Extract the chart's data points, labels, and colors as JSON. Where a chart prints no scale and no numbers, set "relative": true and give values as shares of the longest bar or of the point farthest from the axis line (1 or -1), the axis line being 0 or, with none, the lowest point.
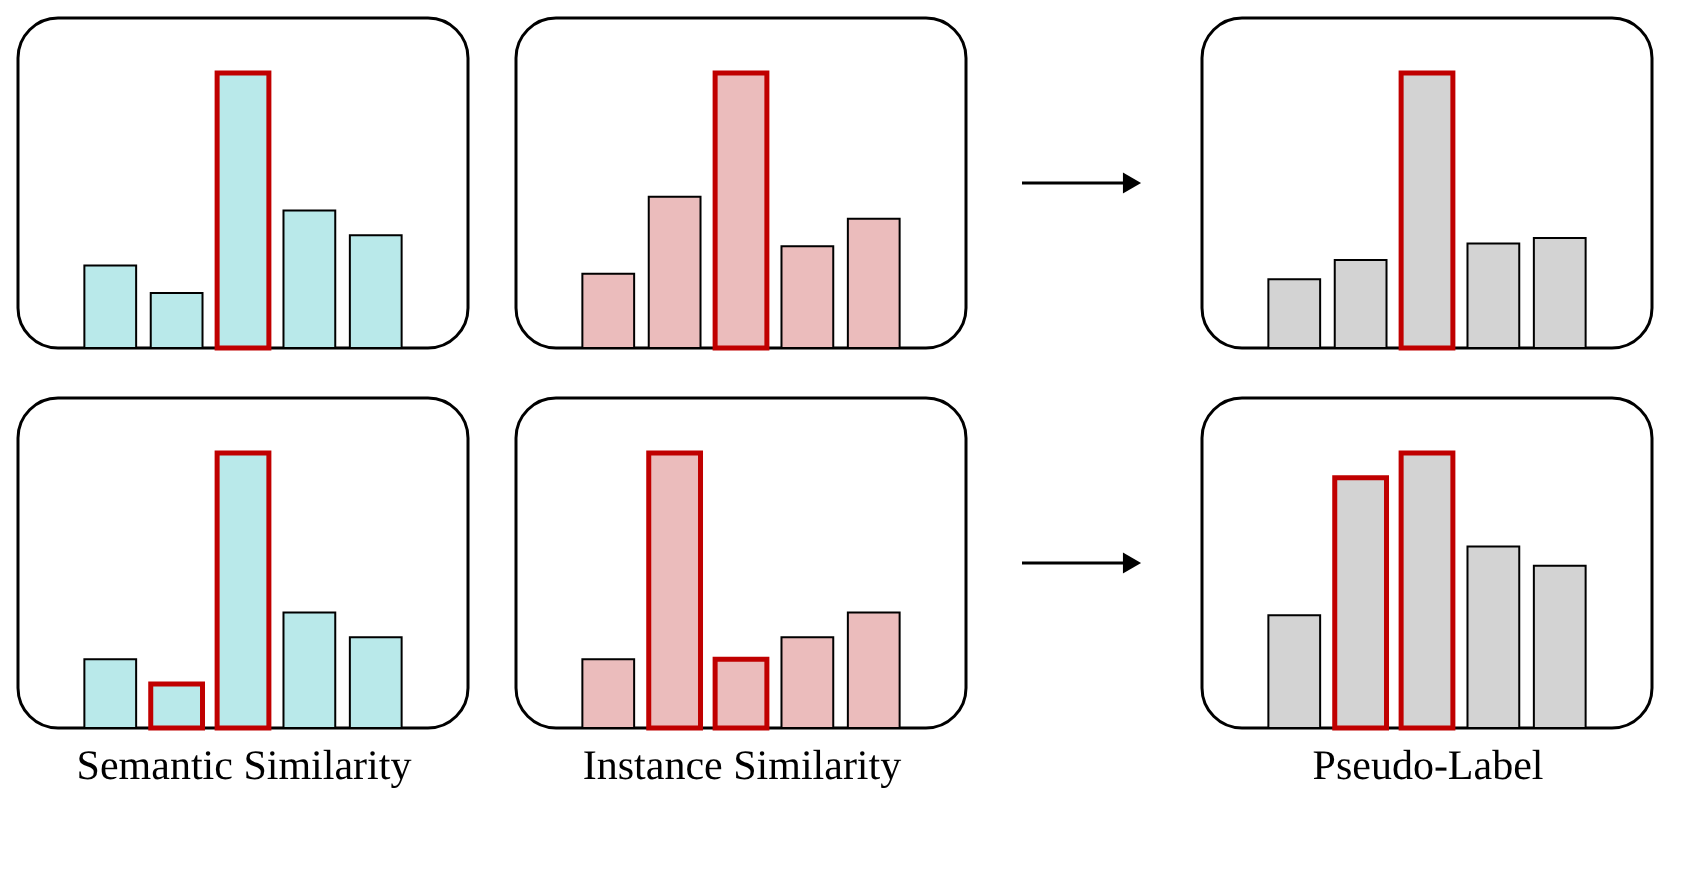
{
  "chart_data": [
    {
      "type": "bar",
      "relative": true,
      "tick_labels": false,
      "categories": [
        null,
        null,
        null,
        null,
        null
      ],
      "colors": [
        "#000000",
        "#000000",
        "#c00000",
        "#000000",
        "#000000"
      ],
      "series": [
        {
          "color": "#b9e9ea",
          "values": [
            0.3,
            0.2,
            1,
            0.5,
            0.41
          ]
        }
      ]
    },
    {
      "type": "bar",
      "relative": true,
      "tick_labels": false,
      "categories": [
        null,
        null,
        null,
        null,
        null
      ],
      "colors": [
        "#000000",
        "#000000",
        "#c00000",
        "#000000",
        "#000000"
      ],
      "series": [
        {
          "color": "#ebbcbc",
          "values": [
            0.27,
            0.55,
            1,
            0.37,
            0.47
          ]
        }
      ]
    },
    {
      "type": "bar",
      "relative": true,
      "tick_labels": false,
      "categories": [
        null,
        null,
        null,
        null,
        null
      ],
      "colors": [
        "#000000",
        "#000000",
        "#c00000",
        "#000000",
        "#000000"
      ],
      "series": [
        {
          "color": "#d3d3d3",
          "values": [
            0.25,
            0.32,
            1,
            0.38,
            0.4
          ]
        }
      ]
    },
    {
      "type": "bar",
      "relative": true,
      "tick_labels": false,
      "xlabel": "Semantic Similarity",
      "categories": [
        null,
        null,
        null,
        null,
        null
      ],
      "colors": [
        "#000000",
        "#c00000",
        "#c00000",
        "#000000",
        "#000000"
      ],
      "series": [
        {
          "color": "#b9e9ea",
          "values": [
            0.25,
            0.16,
            1,
            0.42,
            0.33
          ]
        }
      ]
    },
    {
      "type": "bar",
      "relative": true,
      "tick_labels": false,
      "xlabel": "Instance Similarity",
      "categories": [
        null,
        null,
        null,
        null,
        null
      ],
      "colors": [
        "#000000",
        "#c00000",
        "#c00000",
        "#000000",
        "#000000"
      ],
      "series": [
        {
          "color": "#ebbcbc",
          "values": [
            0.25,
            1,
            0.25,
            0.33,
            0.42
          ]
        }
      ]
    },
    {
      "type": "bar",
      "relative": true,
      "tick_labels": false,
      "xlabel": "Pseudo-Label",
      "categories": [
        null,
        null,
        null,
        null,
        null
      ],
      "colors": [
        "#000000",
        "#c00000",
        "#c00000",
        "#000000",
        "#000000"
      ],
      "series": [
        {
          "color": "#d3d3d3",
          "values": [
            0.41,
            0.91,
            1,
            0.66,
            0.59
          ]
        }
      ]
    }
  ]
}
